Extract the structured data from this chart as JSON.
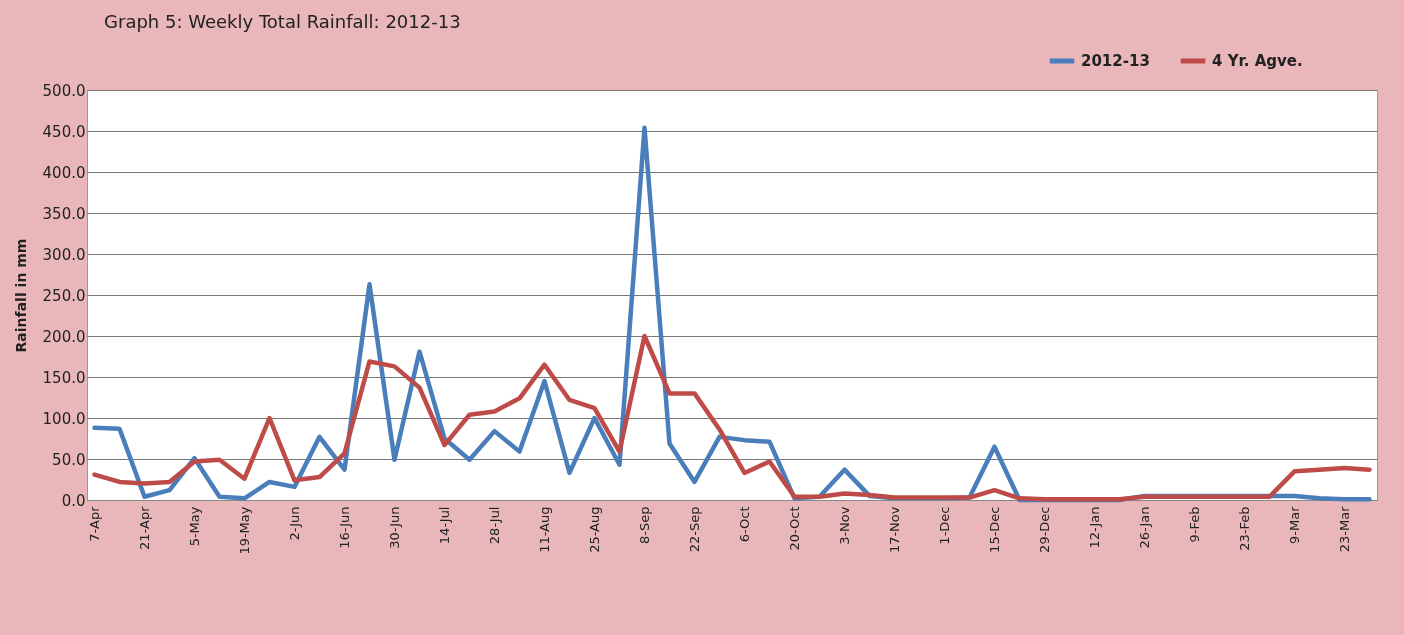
{
  "chart_data": {
    "type": "line",
    "title": "Graph 5: Weekly Total Rainfall: 2012-13",
    "ylabel": "Rainfall in mm",
    "categories": [
      "7-Apr",
      null,
      "21-Apr",
      null,
      "5-May",
      null,
      "19-May",
      null,
      "2-Jun",
      null,
      "16-Jun",
      null,
      "30-Jun",
      null,
      "14-Jul",
      null,
      "28-Jul",
      null,
      "11-Aug",
      null,
      "25-Aug",
      null,
      "8-Sep",
      null,
      "22-Sep",
      null,
      "6-Oct",
      null,
      "20-Oct",
      null,
      "3-Nov",
      null,
      "17-Nov",
      null,
      "1-Dec",
      null,
      "15-Dec",
      null,
      "29-Dec",
      null,
      "12-Jan",
      null,
      "26-Jan",
      null,
      "9-Feb",
      null,
      "23-Feb",
      null,
      "9-Mar",
      null,
      "23-Mar",
      null
    ],
    "series": [
      {
        "name": "2012-13",
        "color": "#4a7ebb",
        "values": [
          88,
          87,
          4,
          12,
          51,
          4,
          2,
          22,
          16,
          77,
          37,
          263,
          49,
          181,
          75,
          49,
          84,
          59,
          145,
          33,
          100,
          43,
          454,
          69,
          22,
          77,
          73,
          71,
          2,
          4,
          37,
          5,
          2,
          2,
          2,
          3,
          65,
          0,
          0,
          0,
          0,
          0,
          5,
          5,
          5,
          5,
          5,
          5,
          5,
          2,
          1,
          1
        ]
      },
      {
        "name": "4 Yr. Agve.",
        "color": "#be4b48",
        "values": [
          31,
          22,
          20,
          22,
          47,
          49,
          26,
          100,
          24,
          28,
          57,
          169,
          163,
          137,
          67,
          104,
          108,
          124,
          165,
          122,
          112,
          59,
          200,
          130,
          130,
          86,
          33,
          47,
          4,
          4,
          8,
          6,
          3,
          3,
          3,
          3,
          12,
          2,
          1,
          1,
          1,
          1,
          4,
          4,
          4,
          4,
          4,
          4,
          35,
          37,
          39,
          37
        ]
      }
    ],
    "ylim": [
      0,
      500
    ],
    "yticks": [
      {
        "value": 0,
        "label": "0.0"
      },
      {
        "value": 50,
        "label": "50.0"
      },
      {
        "value": 100,
        "label": "100.0"
      },
      {
        "value": 150,
        "label": "150.0"
      },
      {
        "value": 200,
        "label": "200.0"
      },
      {
        "value": 250,
        "label": "250.0"
      },
      {
        "value": 300,
        "label": "300.0"
      },
      {
        "value": 350,
        "label": "350.0"
      },
      {
        "value": 400,
        "label": "400.0"
      },
      {
        "value": 450,
        "label": "450.0"
      },
      {
        "value": 500,
        "label": "500.0"
      }
    ],
    "grid": "y",
    "legend": "top right"
  }
}
